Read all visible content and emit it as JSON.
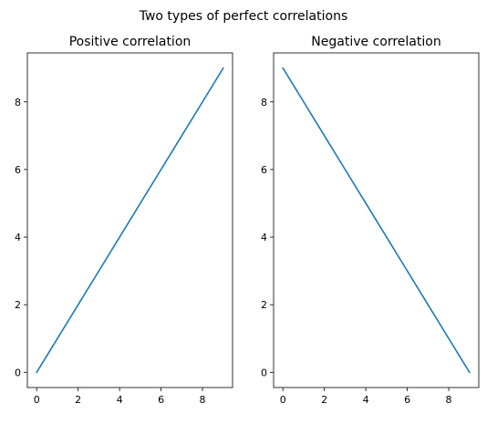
{
  "figure": {
    "title": "Two types of perfect correlations"
  },
  "chart_data": [
    {
      "type": "line",
      "title": "Positive correlation",
      "xlabel": "",
      "ylabel": "",
      "xlim": [
        -0.45,
        9.45
      ],
      "ylim": [
        -0.45,
        9.45
      ],
      "xticks": [
        0,
        2,
        4,
        6,
        8
      ],
      "yticks": [
        0,
        2,
        4,
        6,
        8
      ],
      "grid": false,
      "series": [
        {
          "x": [
            0,
            1,
            2,
            3,
            4,
            5,
            6,
            7,
            8,
            9
          ],
          "y": [
            0,
            1,
            2,
            3,
            4,
            5,
            6,
            7,
            8,
            9
          ],
          "color": "#1f77b4"
        }
      ]
    },
    {
      "type": "line",
      "title": "Negative correlation",
      "xlabel": "",
      "ylabel": "",
      "xlim": [
        -0.45,
        9.45
      ],
      "ylim": [
        -0.45,
        9.45
      ],
      "xticks": [
        0,
        2,
        4,
        6,
        8
      ],
      "yticks": [
        0,
        2,
        4,
        6,
        8
      ],
      "grid": false,
      "series": [
        {
          "x": [
            0,
            1,
            2,
            3,
            4,
            5,
            6,
            7,
            8,
            9
          ],
          "y": [
            9,
            8,
            7,
            6,
            5,
            4,
            3,
            2,
            1,
            0
          ],
          "color": "#1f77b4"
        }
      ]
    }
  ]
}
